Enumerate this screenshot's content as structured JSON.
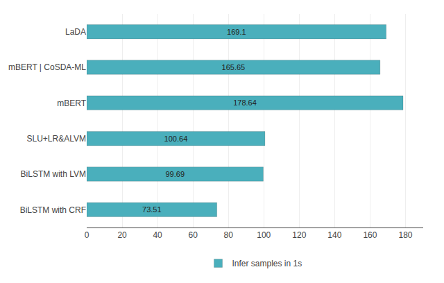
{
  "chart_data": {
    "type": "bar",
    "orientation": "horizontal",
    "categories": [
      "BiLSTM with CRF",
      "BiLSTM with LVM",
      "SLU+LR&ALVM",
      "mBERT",
      "mBERT | CoSDA-ML",
      "LaDA"
    ],
    "series": [
      {
        "name": "Infer samples in 1s",
        "color": "#4AAFBC",
        "values": [
          73.51,
          99.69,
          100.64,
          178.64,
          165.65,
          169.1
        ]
      }
    ],
    "xlim": [
      0,
      190
    ],
    "xticks": [
      0,
      20,
      40,
      60,
      80,
      100,
      120,
      140,
      160,
      180
    ],
    "grid": true,
    "legend": "bottom",
    "data_labels": true
  }
}
